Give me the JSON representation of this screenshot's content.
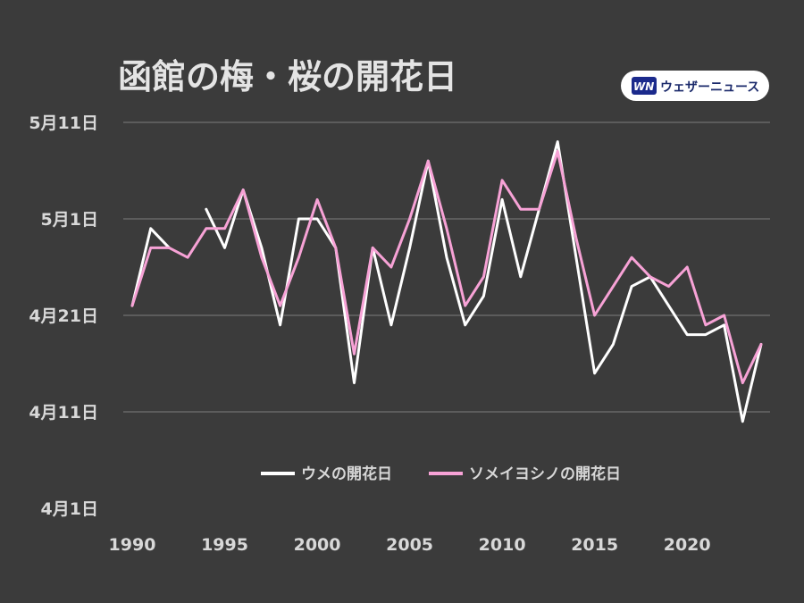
{
  "brand": {
    "logo_text": "WN",
    "name": "ウェザーニュース",
    "colors": {
      "logo_bg": "#1b2a8c",
      "badge_bg": "#ffffff",
      "text": "#1b2a6b"
    }
  },
  "chart_data": {
    "type": "line",
    "title": "函館の梅・桜の開花日",
    "xlabel": "",
    "ylabel": "",
    "x": [
      1990,
      1991,
      1992,
      1993,
      1994,
      1995,
      1996,
      1997,
      1998,
      1999,
      2000,
      2001,
      2002,
      2003,
      2004,
      2005,
      2006,
      2007,
      2008,
      2009,
      2010,
      2011,
      2012,
      2013,
      2014,
      2015,
      2016,
      2017,
      2018,
      2019,
      2020,
      2021,
      2022,
      2023,
      2024
    ],
    "xlim": [
      1990,
      2024
    ],
    "x_ticks": [
      1990,
      1995,
      2000,
      2005,
      2010,
      2015,
      2020
    ],
    "x_tick_labels": [
      "1990",
      "1995",
      "2000",
      "2005",
      "2010",
      "2015",
      "2020"
    ],
    "y_unit": "day of year (Apr 1 = 91)",
    "ylim": [
      91,
      131
    ],
    "y_ticks": [
      91,
      101,
      111,
      121,
      131
    ],
    "y_tick_labels": [
      "4月1日",
      "4月11日",
      "4月21日",
      "5月1日",
      "5月11日"
    ],
    "grid": true,
    "legend_position": "lower-center",
    "series": [
      {
        "name": "ウメの開花日",
        "color": "#ffffff",
        "values": [
          112,
          120,
          118,
          null,
          122,
          118,
          124,
          118,
          110,
          121,
          121,
          118,
          104,
          118,
          110,
          118,
          127,
          117,
          110,
          113,
          123,
          115,
          122,
          129,
          117,
          105,
          108,
          114,
          115,
          112,
          109,
          109,
          110,
          100,
          108
        ]
      },
      {
        "name": "ソメイヨシノの開花日",
        "color": "#f7a2d6",
        "values": [
          112,
          118,
          118,
          117,
          120,
          120,
          124,
          117,
          112,
          117,
          123,
          118,
          107,
          118,
          116,
          121,
          127,
          120,
          112,
          115,
          125,
          122,
          122,
          128,
          119,
          111,
          114,
          117,
          115,
          114,
          116,
          110,
          111,
          104,
          108
        ]
      }
    ]
  }
}
